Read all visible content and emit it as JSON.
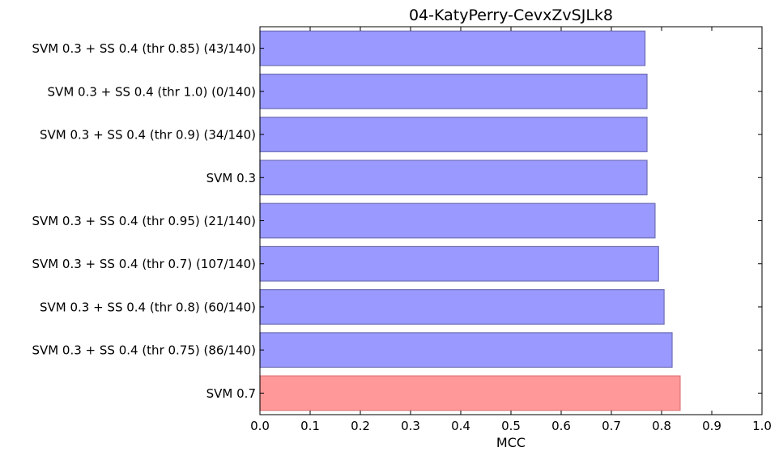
{
  "chart_data": {
    "type": "bar",
    "orientation": "horizontal",
    "title": "04-KatyPerry-CevxZvSJLk8",
    "xlabel": "MCC",
    "ylabel": "",
    "xlim": [
      0.0,
      1.0
    ],
    "xticks": [
      "0.0",
      "0.1",
      "0.2",
      "0.3",
      "0.4",
      "0.5",
      "0.6",
      "0.7",
      "0.8",
      "0.9",
      "1.0"
    ],
    "grid": false,
    "categories": [
      "SVM 0.3 + SS 0.4 (thr 0.85) (43/140)",
      "SVM 0.3 + SS 0.4 (thr 1.0) (0/140)",
      "SVM 0.3 + SS 0.4 (thr 0.9) (34/140)",
      "SVM 0.3",
      "SVM 0.3 + SS 0.4 (thr 0.95) (21/140)",
      "SVM 0.3 + SS 0.4 (thr 0.7) (107/140)",
      "SVM 0.3 + SS 0.4 (thr 0.8) (60/140)",
      "SVM 0.3 + SS 0.4 (thr 0.75) (86/140)",
      "SVM 0.7"
    ],
    "values": [
      0.767,
      0.771,
      0.771,
      0.771,
      0.787,
      0.794,
      0.805,
      0.821,
      0.837
    ],
    "colors": [
      "#9999ff",
      "#9999ff",
      "#9999ff",
      "#9999ff",
      "#9999ff",
      "#9999ff",
      "#9999ff",
      "#9999ff",
      "#ff9999"
    ],
    "edge_colors": [
      "#6e6eb4",
      "#6e6eb4",
      "#6e6eb4",
      "#6e6eb4",
      "#6e6eb4",
      "#6e6eb4",
      "#6e6eb4",
      "#6e6eb4",
      "#e07575"
    ]
  }
}
